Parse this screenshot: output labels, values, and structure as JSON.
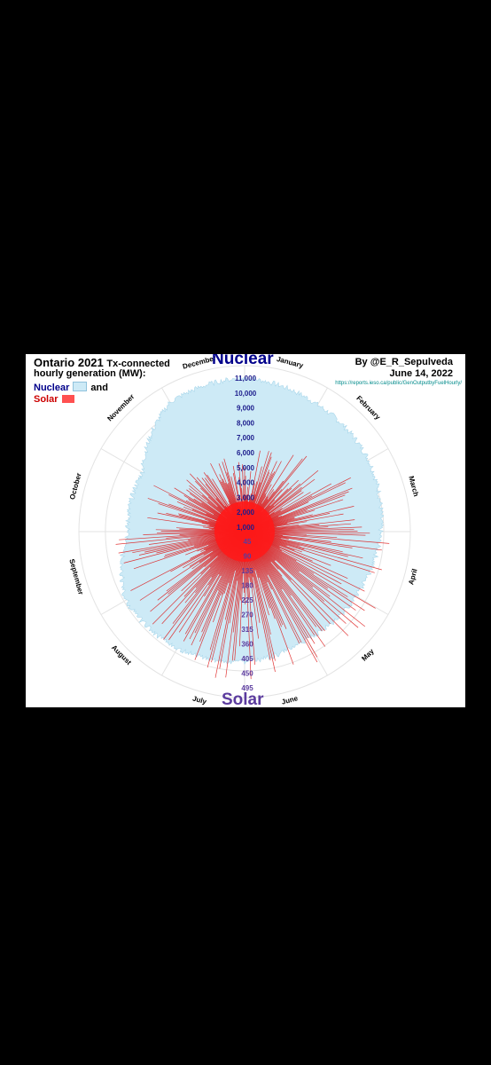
{
  "header": {
    "title": "Ontario 2021",
    "title_rest": "Tx-connected",
    "subtitle": "hourly generation (MW):",
    "legend_nuclear": "Nuclear",
    "legend_and": "and",
    "legend_solar": "Solar",
    "credit_author": "By @E_R_Sepulveda",
    "credit_date": "June 14, 2022",
    "credit_url": "https://reports.ieso.ca/public/GenOutputbyFuelHourly/",
    "top_label": "Nuclear",
    "bottom_label": "Solar"
  },
  "chart_data": {
    "type": "radial",
    "title": "Ontario 2021 Tx-connected hourly generation (MW): Nuclear and Solar",
    "months": [
      "January",
      "February",
      "March",
      "April",
      "May",
      "June",
      "July",
      "August",
      "September",
      "October",
      "November",
      "December"
    ],
    "series": [
      {
        "name": "Nuclear",
        "unit": "MW",
        "color": "#cdeaf6",
        "monthly_approx_hourly_mw": [
          10500,
          10000,
          9800,
          9300,
          8800,
          8500,
          8900,
          9200,
          9400,
          8000,
          8100,
          10200
        ],
        "axis_ticks": [
          "11,000",
          "10,000",
          "9,000",
          "8,000",
          "7,000",
          "6,000",
          "5,000",
          "4,000",
          "3,000",
          "2,000",
          "1,000"
        ]
      },
      {
        "name": "Solar",
        "unit": "MW",
        "color": "#ee1111",
        "approx_daily_peak_mw_range": [
          0,
          495
        ],
        "axis_ticks": [
          "45",
          "90",
          "135",
          "180",
          "225",
          "270",
          "315",
          "360",
          "405",
          "450",
          "495"
        ]
      }
    ]
  }
}
